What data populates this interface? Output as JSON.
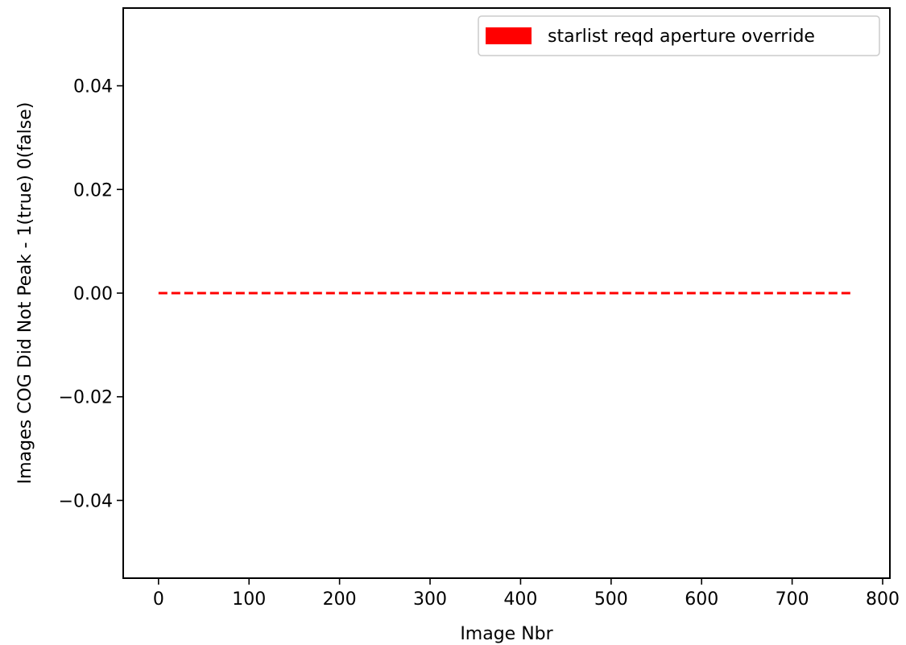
{
  "chart_data": {
    "type": "line",
    "title": "",
    "xlabel": "Image Nbr",
    "ylabel": "Images COG Did Not Peak - 1(true) 0(false)",
    "xlim": [
      -39,
      808
    ],
    "ylim": [
      -0.055,
      0.055
    ],
    "x_ticks": [
      0,
      100,
      200,
      300,
      400,
      500,
      600,
      700,
      800
    ],
    "x_tick_labels": [
      "0",
      "100",
      "200",
      "300",
      "400",
      "500",
      "600",
      "700",
      "800"
    ],
    "y_ticks": [
      0.04,
      0.02,
      0.0,
      -0.02,
      -0.04
    ],
    "y_tick_labels": [
      "0.04",
      "0.02",
      "0.00",
      "−0.02",
      "−0.04"
    ],
    "grid": false,
    "legend_position": "top-right",
    "series": [
      {
        "name": "starlist reqd aperture override",
        "color": "#ff0000",
        "line_style": "dashed",
        "x": [
          0,
          768
        ],
        "y": [
          0,
          0
        ]
      }
    ]
  }
}
